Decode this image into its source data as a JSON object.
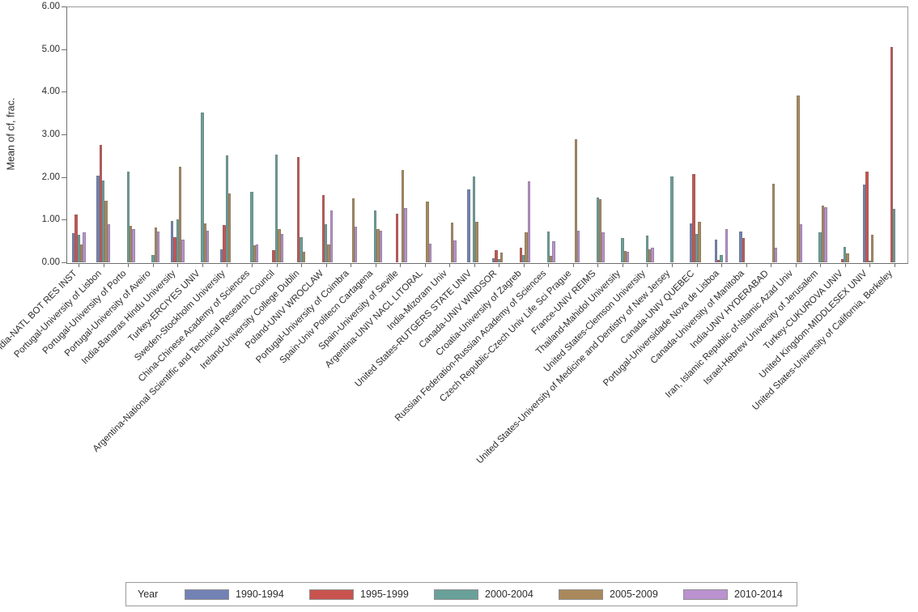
{
  "y_axis": {
    "title": "Mean of cf, frac.",
    "ticks": [
      "6.00",
      "5.00",
      "4.00",
      "3.00",
      "2.00",
      "1.00",
      "0.00"
    ]
  },
  "legend": {
    "title": "Year"
  },
  "colors": {
    "axis": "#6f6f6f",
    "frame": "#9b9b9b",
    "blue_1990_1994": "#7282b4",
    "red_1995_1999": "#c8534f",
    "teal_2000_2004": "#69a09a",
    "tan_2005_2009": "#a9895c",
    "purple_2010_2014": "#ba92cf"
  },
  "chart_data": {
    "type": "bar",
    "title": "",
    "xlabel": "",
    "ylabel": "Mean of cf, frac.",
    "ylim": [
      0,
      6
    ],
    "ytick_interval": 1.0,
    "grid": false,
    "legend_position": "bottom",
    "categories": [
      "India-NATL BOT RES INST",
      "Portugal-University of Lisbon",
      "Portugal-University of Porto",
      "Portugal-University of Aveiro",
      "India-Banaras Hindu University",
      "Turkey-ERCIYES UNIV",
      "Sweden-Stockholm University",
      "China-Chinese Academy of Sciences",
      "Argentina-National Scientific and Technical Research Council",
      "Ireland-University College Dublin",
      "Poland-UNIV WROCLAW",
      "Portugal-University of Coimbra",
      "Spain-Univ Politecn Cartagena",
      "Spain-University of Seville",
      "Argentina-UNIV NACL LITORAL",
      "India-Mizoram Univ",
      "United States-RUTGERS STATE UNIV",
      "Canada-UNIV WINDSOR",
      "Croatia-University of Zagreb",
      "Russian Federation-Russian Academy of Sciences",
      "Czech Republic-Czech Univ Life Sci Prague",
      "France-UNIV REIMS",
      "Thailand-Mahidol University",
      "United States-Clemson University",
      "United States-University of Medicine and Dentistry of New Jersey",
      "Canada-UNIV QUEBEC",
      "Portugal-Universidade Nova de Lisboa",
      "Canada-University of Manitoba",
      "India-UNIV HYDERABAD",
      "Iran, Islamic Republic of-Islamic Azad Univ",
      "Israel-Hebrew University of Jerusalem",
      "Turkey-CUKUROVA UNIV",
      "United Kingdom-MIDDLESEX UNIV",
      "United States-University of California, Berkeley"
    ],
    "series": [
      {
        "name": "1990-1994",
        "color": "#7282b4",
        "values": [
          0.68,
          2.04,
          null,
          null,
          0.97,
          null,
          0.31,
          null,
          null,
          null,
          null,
          null,
          null,
          null,
          null,
          null,
          1.7,
          0.1,
          null,
          null,
          null,
          null,
          null,
          null,
          null,
          0.92,
          0.53,
          0.73,
          null,
          null,
          null,
          null,
          1.82,
          null
        ]
      },
      {
        "name": "1995-1999",
        "color": "#c8534f",
        "values": [
          1.12,
          2.75,
          null,
          null,
          0.58,
          null,
          0.88,
          null,
          0.28,
          2.47,
          1.57,
          null,
          null,
          1.13,
          null,
          null,
          null,
          0.28,
          0.34,
          null,
          null,
          null,
          null,
          null,
          null,
          2.07,
          0.05,
          0.57,
          null,
          null,
          null,
          0.08,
          2.13,
          5.05
        ]
      },
      {
        "name": "2000-2004",
        "color": "#69a09a",
        "values": [
          0.65,
          1.92,
          2.12,
          0.17,
          1.0,
          3.52,
          2.5,
          1.65,
          2.53,
          0.58,
          0.9,
          null,
          1.21,
          null,
          null,
          null,
          2.02,
          0.08,
          0.17,
          0.72,
          null,
          1.52,
          0.57,
          0.63,
          2.02,
          0.66,
          0.18,
          null,
          null,
          null,
          0.71,
          0.36,
          0.04,
          1.26
        ]
      },
      {
        "name": "2005-2009",
        "color": "#a9895c",
        "values": [
          0.42,
          1.45,
          0.86,
          0.82,
          2.24,
          0.92,
          1.62,
          0.4,
          0.77,
          0.24,
          0.41,
          1.5,
          0.78,
          2.16,
          1.42,
          0.93,
          0.95,
          0.23,
          0.7,
          0.16,
          2.88,
          1.48,
          0.27,
          0.31,
          null,
          0.94,
          null,
          null,
          1.85,
          3.92,
          1.32,
          0.2,
          0.64,
          null
        ]
      },
      {
        "name": "2010-2014",
        "color": "#ba92cf",
        "values": [
          0.71,
          0.89,
          0.77,
          0.72,
          0.54,
          0.74,
          null,
          0.41,
          0.66,
          null,
          1.22,
          0.84,
          0.75,
          1.27,
          0.43,
          0.52,
          null,
          null,
          1.89,
          0.49,
          0.75,
          0.71,
          0.24,
          0.34,
          null,
          null,
          0.78,
          null,
          0.35,
          0.9,
          1.29,
          null,
          null,
          null
        ]
      }
    ]
  }
}
